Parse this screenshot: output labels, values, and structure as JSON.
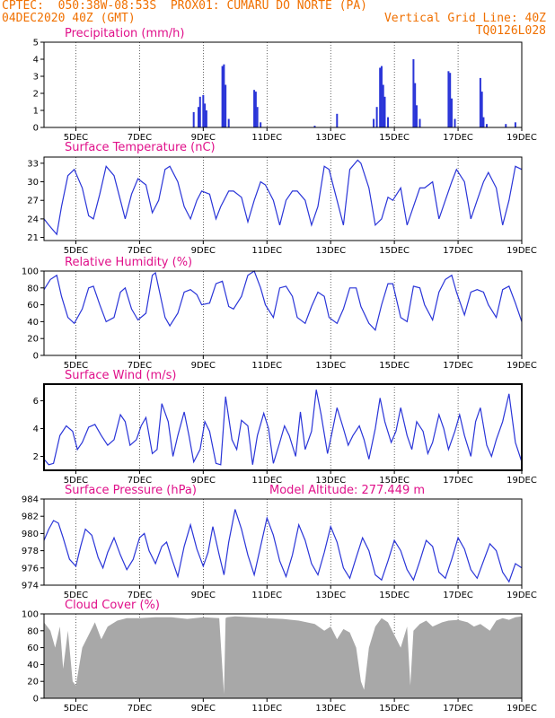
{
  "header": {
    "line1_left": "CPTEC:  050:38W-08:53S  PROX01: CUMARU DO NORTE (PA)",
    "line2_left": "04DEC2020 40Z (GMT)",
    "line2_right": "Vertical Grid Line: 40Z",
    "line3_right": "TQ0126L028"
  },
  "colors": {
    "title": "#e0108a",
    "header": "#f07000",
    "series": "#2a35d8",
    "cloud": "#a8a8a8"
  },
  "x_axis": {
    "start_day": 4,
    "end_day": 19,
    "tick_labels": [
      "5DEC",
      "7DEC",
      "9DEC",
      "11DEC",
      "13DEC",
      "15DEC",
      "17DEC",
      "19DEC"
    ],
    "tick_days": [
      5,
      7,
      9,
      11,
      13,
      15,
      17,
      19
    ]
  },
  "chart_data": [
    {
      "type": "bar",
      "title": "Precipitation (mm/h)",
      "ylim": [
        0,
        5
      ],
      "yticks": [
        0,
        1,
        2,
        3,
        4,
        5
      ],
      "x": [
        8.7,
        8.85,
        8.9,
        9.0,
        9.05,
        9.1,
        9.6,
        9.65,
        9.7,
        9.8,
        10.6,
        10.65,
        10.7,
        10.8,
        12.5,
        13.2,
        14.35,
        14.45,
        14.55,
        14.6,
        14.65,
        14.7,
        14.8,
        15.6,
        15.65,
        15.7,
        15.8,
        16.7,
        16.75,
        16.8,
        16.9,
        17.7,
        17.75,
        17.8,
        17.9,
        18.5,
        18.8
      ],
      "values": [
        0.9,
        1.2,
        1.8,
        1.9,
        1.4,
        1.0,
        3.6,
        3.7,
        2.5,
        0.5,
        2.2,
        2.1,
        1.2,
        0.3,
        0.1,
        0.8,
        0.5,
        1.2,
        3.5,
        3.6,
        2.5,
        1.8,
        0.6,
        4.0,
        2.6,
        1.3,
        0.5,
        3.3,
        3.2,
        1.7,
        0.5,
        2.9,
        2.1,
        0.6,
        0.2,
        0.2,
        0.3
      ]
    },
    {
      "type": "line",
      "title": "Surface Temperature (nC)",
      "ylim": [
        20.5,
        34
      ],
      "yticks": [
        21,
        24,
        27,
        30,
        33
      ],
      "x": [
        4.0,
        4.15,
        4.4,
        4.55,
        4.75,
        4.95,
        5.2,
        5.4,
        5.55,
        5.75,
        5.95,
        6.2,
        6.4,
        6.55,
        6.75,
        6.95,
        7.2,
        7.4,
        7.6,
        7.8,
        7.95,
        8.2,
        8.4,
        8.6,
        8.8,
        8.95,
        9.2,
        9.4,
        9.55,
        9.8,
        9.95,
        10.2,
        10.4,
        10.6,
        10.8,
        10.95,
        11.2,
        11.4,
        11.6,
        11.8,
        11.95,
        12.2,
        12.4,
        12.6,
        12.8,
        12.95,
        13.2,
        13.4,
        13.6,
        13.85,
        13.95,
        14.2,
        14.4,
        14.6,
        14.8,
        14.95,
        15.2,
        15.4,
        15.6,
        15.8,
        15.95,
        16.2,
        16.4,
        16.6,
        16.8,
        16.95,
        17.2,
        17.4,
        17.6,
        17.8,
        17.95,
        18.2,
        18.4,
        18.6,
        18.8,
        19.0
      ],
      "values": [
        24,
        23,
        21.5,
        26,
        31,
        32,
        29,
        24.5,
        24,
        28,
        32.5,
        31,
        27,
        24,
        28,
        30.5,
        29.5,
        25,
        27,
        32,
        32.5,
        30,
        26,
        24,
        27,
        28.5,
        28,
        24,
        26,
        28.5,
        28.5,
        27.5,
        23.5,
        27,
        30,
        29.5,
        27,
        23,
        27,
        28.5,
        28.5,
        27,
        23,
        26,
        32.5,
        32,
        27,
        23,
        32,
        33.5,
        33,
        29,
        23,
        24,
        27.5,
        27,
        29,
        23,
        26,
        29,
        29,
        30,
        24,
        27,
        30,
        32,
        30,
        24,
        27,
        30,
        31.5,
        29,
        23,
        27,
        32.5,
        32
      ]
    },
    {
      "type": "line",
      "title": "Relative Humidity (%)",
      "ylim": [
        0,
        100
      ],
      "yticks": [
        0,
        20,
        40,
        60,
        80,
        100
      ],
      "x": [
        4.0,
        4.2,
        4.4,
        4.55,
        4.75,
        4.95,
        5.2,
        5.4,
        5.55,
        5.75,
        5.95,
        6.2,
        6.4,
        6.55,
        6.75,
        6.95,
        7.2,
        7.4,
        7.5,
        7.6,
        7.8,
        7.95,
        8.2,
        8.4,
        8.6,
        8.8,
        8.95,
        9.2,
        9.4,
        9.6,
        9.8,
        9.95,
        10.2,
        10.4,
        10.6,
        10.8,
        10.95,
        11.2,
        11.4,
        11.6,
        11.8,
        11.95,
        12.2,
        12.4,
        12.6,
        12.8,
        12.95,
        13.2,
        13.4,
        13.6,
        13.8,
        13.95,
        14.2,
        14.4,
        14.6,
        14.8,
        14.95,
        15.2,
        15.4,
        15.6,
        15.8,
        15.95,
        16.2,
        16.4,
        16.6,
        16.8,
        16.95,
        17.2,
        17.4,
        17.6,
        17.8,
        17.95,
        18.2,
        18.4,
        18.6,
        18.8,
        19.0
      ],
      "values": [
        78,
        90,
        95,
        70,
        45,
        38,
        55,
        80,
        82,
        60,
        40,
        45,
        75,
        80,
        55,
        42,
        50,
        95,
        98,
        80,
        45,
        35,
        50,
        75,
        78,
        72,
        60,
        62,
        85,
        88,
        58,
        55,
        70,
        95,
        100,
        80,
        60,
        45,
        80,
        82,
        70,
        45,
        38,
        58,
        75,
        70,
        45,
        38,
        55,
        80,
        80,
        58,
        38,
        30,
        60,
        85,
        85,
        45,
        40,
        82,
        80,
        60,
        42,
        75,
        90,
        95,
        75,
        48,
        75,
        78,
        75,
        60,
        45,
        78,
        82,
        62,
        40
      ]
    },
    {
      "type": "line",
      "title": "Surface Wind (m/s)",
      "ylim": [
        1,
        7.2
      ],
      "yticks": [
        2,
        4,
        6
      ],
      "x": [
        4.0,
        4.15,
        4.3,
        4.5,
        4.7,
        4.9,
        5.05,
        5.2,
        5.4,
        5.6,
        5.8,
        6.0,
        6.2,
        6.4,
        6.55,
        6.7,
        6.9,
        7.05,
        7.2,
        7.4,
        7.55,
        7.7,
        7.9,
        8.05,
        8.2,
        8.4,
        8.55,
        8.7,
        8.9,
        9.05,
        9.2,
        9.4,
        9.55,
        9.7,
        9.9,
        10.05,
        10.2,
        10.4,
        10.55,
        10.7,
        10.9,
        11.05,
        11.2,
        11.4,
        11.55,
        11.7,
        11.9,
        12.05,
        12.2,
        12.4,
        12.55,
        12.7,
        12.9,
        13.05,
        13.2,
        13.4,
        13.55,
        13.7,
        13.9,
        14.05,
        14.2,
        14.4,
        14.55,
        14.7,
        14.9,
        15.05,
        15.2,
        15.4,
        15.55,
        15.7,
        15.9,
        16.05,
        16.2,
        16.4,
        16.55,
        16.7,
        16.9,
        17.05,
        17.2,
        17.4,
        17.55,
        17.7,
        17.9,
        18.05,
        18.2,
        18.4,
        18.6,
        18.8,
        19.0
      ],
      "values": [
        1.8,
        1.4,
        1.5,
        3.5,
        4.2,
        3.8,
        2.5,
        3.0,
        4.1,
        4.3,
        3.5,
        2.8,
        3.2,
        5.0,
        4.5,
        2.8,
        3.2,
        4.2,
        4.8,
        2.2,
        2.5,
        5.8,
        4.5,
        2.0,
        3.5,
        5.2,
        3.5,
        1.6,
        2.5,
        4.5,
        3.8,
        1.5,
        1.4,
        6.3,
        3.2,
        2.5,
        4.6,
        4.2,
        1.4,
        3.5,
        5.1,
        4.0,
        1.5,
        3.0,
        4.2,
        3.5,
        2.0,
        5.2,
        2.5,
        3.8,
        6.8,
        5.0,
        2.2,
        3.8,
        5.5,
        4.0,
        2.8,
        3.5,
        4.2,
        3.2,
        1.8,
        4.0,
        6.2,
        4.5,
        3.0,
        3.8,
        5.5,
        3.5,
        2.5,
        4.5,
        3.8,
        2.2,
        3.0,
        5.0,
        4.0,
        2.5,
        3.8,
        5.0,
        3.5,
        2.0,
        4.5,
        5.5,
        2.8,
        2.0,
        3.2,
        4.5,
        6.5,
        3.0,
        1.6
      ]
    },
    {
      "type": "line",
      "title": "Surface Pressure (hPa)",
      "subtitle": "Model Altitude: 277.449 m",
      "ylim": [
        974,
        984
      ],
      "yticks": [
        974,
        976,
        978,
        980,
        982,
        984
      ],
      "x": [
        4.0,
        4.15,
        4.3,
        4.45,
        4.6,
        4.8,
        5.0,
        5.15,
        5.3,
        5.5,
        5.7,
        5.85,
        6.0,
        6.2,
        6.4,
        6.6,
        6.8,
        7.0,
        7.15,
        7.3,
        7.5,
        7.7,
        7.85,
        8.0,
        8.2,
        8.4,
        8.6,
        8.8,
        9.0,
        9.15,
        9.3,
        9.5,
        9.65,
        9.8,
        10.0,
        10.2,
        10.4,
        10.6,
        10.8,
        11.0,
        11.2,
        11.4,
        11.6,
        11.8,
        12.0,
        12.2,
        12.4,
        12.6,
        12.8,
        13.0,
        13.2,
        13.4,
        13.6,
        13.8,
        14.0,
        14.2,
        14.4,
        14.6,
        14.8,
        15.0,
        15.2,
        15.4,
        15.6,
        15.8,
        16.0,
        16.2,
        16.4,
        16.6,
        16.8,
        17.0,
        17.2,
        17.4,
        17.6,
        17.8,
        18.0,
        18.2,
        18.4,
        18.6,
        18.8,
        19.0
      ],
      "values": [
        979.2,
        980.5,
        981.5,
        981.2,
        979.5,
        977.0,
        976.2,
        978.5,
        980.5,
        979.8,
        977.2,
        976.0,
        977.8,
        979.5,
        977.5,
        975.8,
        977.0,
        979.5,
        980.0,
        978.0,
        976.5,
        978.5,
        979.0,
        977.2,
        975.0,
        978.5,
        981.0,
        978.2,
        976.2,
        977.8,
        980.8,
        977.5,
        975.2,
        979.0,
        982.8,
        980.5,
        977.5,
        975.2,
        978.5,
        981.8,
        979.8,
        976.8,
        975.0,
        977.5,
        981.0,
        979.2,
        976.5,
        975.2,
        977.8,
        980.8,
        979.0,
        976.0,
        974.8,
        977.2,
        979.5,
        978.0,
        975.2,
        974.6,
        976.8,
        979.2,
        978.0,
        975.8,
        974.6,
        976.8,
        979.2,
        978.5,
        975.5,
        974.8,
        977.0,
        979.5,
        978.2,
        975.8,
        974.8,
        976.8,
        978.8,
        978.0,
        975.5,
        974.4,
        976.5,
        976.0
      ]
    },
    {
      "type": "area",
      "title": "Cloud Cover (%)",
      "ylim": [
        0,
        100
      ],
      "yticks": [
        0,
        20,
        40,
        60,
        80,
        100
      ],
      "x": [
        4.0,
        4.2,
        4.35,
        4.5,
        4.6,
        4.75,
        4.9,
        5.0,
        5.2,
        5.4,
        5.6,
        5.8,
        6.0,
        6.3,
        6.6,
        7.0,
        7.5,
        8.0,
        8.5,
        9.0,
        9.5,
        9.65,
        9.7,
        9.75,
        10.0,
        10.5,
        11.0,
        11.5,
        12.0,
        12.5,
        12.8,
        13.0,
        13.2,
        13.4,
        13.6,
        13.8,
        13.95,
        14.05,
        14.2,
        14.4,
        14.6,
        14.8,
        15.0,
        15.2,
        15.4,
        15.5,
        15.6,
        15.8,
        16.0,
        16.2,
        16.5,
        16.7,
        17.0,
        17.3,
        17.5,
        17.7,
        18.0,
        18.2,
        18.4,
        18.6,
        18.8,
        19.0
      ],
      "values": [
        90,
        80,
        60,
        85,
        35,
        80,
        20,
        15,
        60,
        75,
        90,
        70,
        85,
        92,
        95,
        95,
        96,
        96,
        94,
        96,
        95,
        5,
        95,
        96,
        97,
        96,
        95,
        94,
        92,
        88,
        80,
        85,
        70,
        82,
        78,
        60,
        20,
        10,
        60,
        85,
        95,
        90,
        75,
        60,
        85,
        15,
        80,
        88,
        92,
        85,
        90,
        92,
        93,
        90,
        85,
        88,
        80,
        92,
        95,
        93,
        96,
        97
      ]
    }
  ]
}
